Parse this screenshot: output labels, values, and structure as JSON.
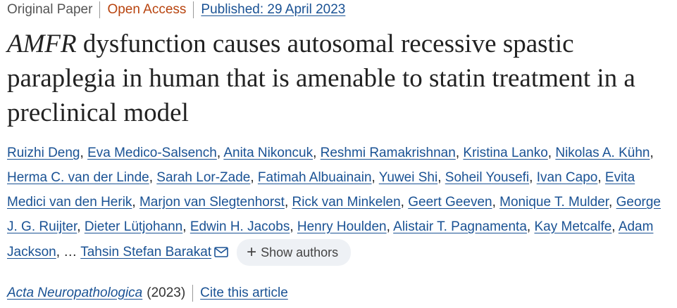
{
  "meta": {
    "type": "Original Paper",
    "access": "Open Access",
    "published": "Published: 29 April 2023"
  },
  "title": {
    "italic": "AMFR",
    "rest": " dysfunction causes autosomal recessive spastic paraplegia in human that is amenable to statin treatment in a preclinical model"
  },
  "authors": [
    "Ruizhi Deng",
    "Eva Medico-Salsench",
    "Anita Nikoncuk",
    "Reshmi Ramakrishnan",
    "Kristina Lanko",
    "Nikolas A. Kühn",
    "Herma C. van der Linde",
    "Sarah Lor-Zade",
    "Fatimah Albuainain",
    "Yuwei Shi",
    "Soheil Yousefi",
    "Ivan Capo",
    "Evita Medici van den Herik",
    "Marjon van Slegtenhorst",
    "Rick van Minkelen",
    "Geert Geeven",
    "Monique T. Mulder",
    "George J. G. Ruijter",
    "Dieter Lütjohann",
    "Edwin H. Jacobs",
    "Henry Houlden",
    "Alistair T. Pagnamenta",
    "Kay Metcalfe",
    "Adam Jackson"
  ],
  "ellipsis": "…",
  "last_author": "Tahsin Stefan Barakat",
  "show_authors": "Show authors",
  "journal": {
    "name": "Acta Neuropathologica",
    "year": "(2023)",
    "cite": "Cite this article"
  },
  "icons": {
    "email": "envelope-icon",
    "expand": "plus-icon"
  }
}
